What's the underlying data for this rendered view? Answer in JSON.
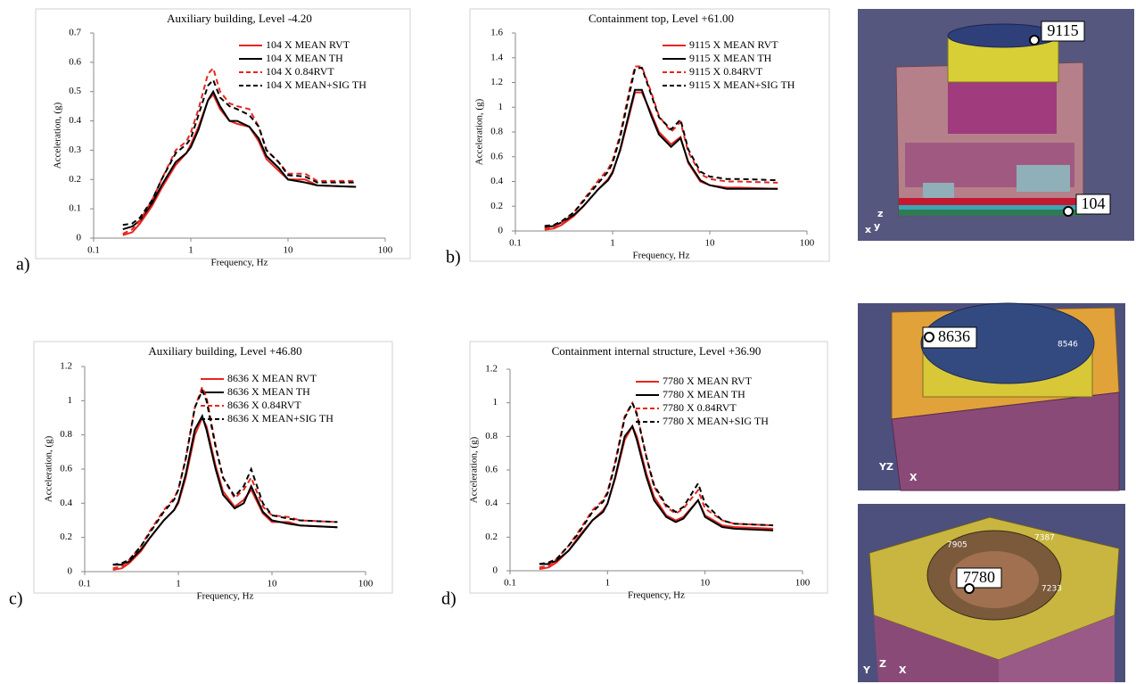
{
  "chart_data": [
    {
      "type": "line",
      "panel_label": "a)",
      "title": "Auxiliary building, Level -4.20",
      "xlabel": "Frequency, Hz",
      "ylabel": "Acceleration, (g)",
      "xscale": "log",
      "xlim": [
        0.1,
        100
      ],
      "xticks": [
        0.1,
        1,
        10,
        100
      ],
      "ylim": [
        0,
        0.7
      ],
      "yticks": [
        0,
        0.1,
        0.2,
        0.3,
        0.4,
        0.5,
        0.6,
        0.7
      ],
      "legend": "upper right",
      "x": [
        0.2,
        0.25,
        0.3,
        0.4,
        0.5,
        0.7,
        0.9,
        1,
        1.2,
        1.5,
        1.7,
        2,
        2.5,
        3,
        4,
        5,
        6,
        8,
        10,
        15,
        20,
        50
      ],
      "series": [
        {
          "name": "104 X MEAN RVT",
          "color": "#e8251f",
          "dash": false,
          "values": [
            0.01,
            0.02,
            0.05,
            0.11,
            0.17,
            0.25,
            0.29,
            0.32,
            0.38,
            0.47,
            0.49,
            0.44,
            0.4,
            0.39,
            0.38,
            0.33,
            0.27,
            0.23,
            0.2,
            0.2,
            0.18,
            0.175
          ]
        },
        {
          "name": "104 X MEAN TH",
          "color": "#000000",
          "dash": false,
          "values": [
            0.03,
            0.04,
            0.06,
            0.12,
            0.18,
            0.26,
            0.29,
            0.31,
            0.37,
            0.47,
            0.5,
            0.45,
            0.4,
            0.4,
            0.38,
            0.34,
            0.28,
            0.24,
            0.2,
            0.19,
            0.18,
            0.175
          ]
        },
        {
          "name": "104 X 0.84RVT",
          "color": "#e8251f",
          "dash": true,
          "values": [
            0.015,
            0.03,
            0.06,
            0.13,
            0.2,
            0.3,
            0.33,
            0.36,
            0.44,
            0.56,
            0.58,
            0.5,
            0.46,
            0.45,
            0.44,
            0.38,
            0.3,
            0.26,
            0.22,
            0.22,
            0.195,
            0.195
          ]
        },
        {
          "name": "104 X MEAN+SIG TH",
          "color": "#000000",
          "dash": true,
          "values": [
            0.045,
            0.05,
            0.07,
            0.13,
            0.2,
            0.29,
            0.32,
            0.34,
            0.42,
            0.52,
            0.54,
            0.48,
            0.45,
            0.44,
            0.42,
            0.38,
            0.3,
            0.26,
            0.215,
            0.21,
            0.19,
            0.19
          ]
        }
      ]
    },
    {
      "type": "line",
      "panel_label": "b)",
      "title": "Containment top, Level +61.00",
      "xlabel": "Frequency, Hz",
      "ylabel": "Acceleration,  (g)",
      "xscale": "log",
      "xlim": [
        0.1,
        100
      ],
      "xticks": [
        0.1,
        1,
        10,
        100
      ],
      "ylim": [
        0,
        1.6
      ],
      "yticks": [
        0,
        0.2,
        0.4,
        0.6,
        0.8,
        1,
        1.2,
        1.4,
        1.6
      ],
      "legend": "upper right",
      "x": [
        0.2,
        0.25,
        0.3,
        0.4,
        0.5,
        0.7,
        0.9,
        1,
        1.2,
        1.5,
        1.7,
        2,
        2.5,
        3,
        4,
        5,
        6,
        8,
        10,
        15,
        20,
        50
      ],
      "series": [
        {
          "name": "9115 X MEAN RVT",
          "color": "#e8251f",
          "dash": false,
          "values": [
            0.01,
            0.02,
            0.05,
            0.12,
            0.2,
            0.33,
            0.42,
            0.48,
            0.65,
            0.95,
            1.12,
            1.12,
            0.95,
            0.8,
            0.7,
            0.76,
            0.55,
            0.4,
            0.37,
            0.35,
            0.35,
            0.34
          ]
        },
        {
          "name": "9115 X MEAN TH",
          "color": "#000000",
          "dash": false,
          "values": [
            0.03,
            0.04,
            0.07,
            0.13,
            0.2,
            0.33,
            0.41,
            0.47,
            0.66,
            0.97,
            1.14,
            1.14,
            0.93,
            0.78,
            0.68,
            0.75,
            0.56,
            0.41,
            0.37,
            0.34,
            0.34,
            0.34
          ]
        },
        {
          "name": "9115 X 0.84RVT",
          "color": "#e8251f",
          "dash": true,
          "values": [
            0.02,
            0.03,
            0.07,
            0.15,
            0.25,
            0.4,
            0.5,
            0.57,
            0.78,
            1.15,
            1.33,
            1.33,
            1.12,
            0.93,
            0.8,
            0.88,
            0.64,
            0.46,
            0.42,
            0.4,
            0.4,
            0.39
          ]
        },
        {
          "name": "9115 X MEAN+SIG TH",
          "color": "#000000",
          "dash": true,
          "values": [
            0.04,
            0.05,
            0.08,
            0.15,
            0.24,
            0.38,
            0.48,
            0.55,
            0.76,
            1.12,
            1.31,
            1.32,
            1.1,
            0.92,
            0.82,
            0.9,
            0.66,
            0.48,
            0.44,
            0.42,
            0.42,
            0.41
          ]
        }
      ]
    },
    {
      "type": "line",
      "panel_label": "c)",
      "title": "Auxiliary building, Level +46.80",
      "xlabel": "Frequency, Hz",
      "ylabel": "Acceleration,  (g)",
      "xscale": "log",
      "xlim": [
        0.1,
        100
      ],
      "xticks": [
        0.1,
        1,
        10,
        100
      ],
      "ylim": [
        0,
        1.2
      ],
      "yticks": [
        0,
        0.2,
        0.4,
        0.6,
        0.8,
        1,
        1.2
      ],
      "legend": "upper right",
      "x": [
        0.2,
        0.25,
        0.3,
        0.4,
        0.5,
        0.7,
        0.9,
        1,
        1.2,
        1.5,
        1.8,
        2,
        2.5,
        3,
        4,
        5,
        6,
        8,
        10,
        15,
        20,
        50
      ],
      "series": [
        {
          "name": "8636 X MEAN RVT",
          "color": "#e8251f",
          "dash": false,
          "values": [
            0.01,
            0.02,
            0.05,
            0.12,
            0.2,
            0.3,
            0.36,
            0.4,
            0.55,
            0.8,
            0.9,
            0.85,
            0.62,
            0.47,
            0.38,
            0.42,
            0.48,
            0.34,
            0.29,
            0.29,
            0.27,
            0.26
          ]
        },
        {
          "name": "8636 X MEAN TH",
          "color": "#000000",
          "dash": false,
          "values": [
            0.04,
            0.04,
            0.06,
            0.13,
            0.2,
            0.3,
            0.36,
            0.41,
            0.57,
            0.83,
            0.91,
            0.83,
            0.6,
            0.45,
            0.37,
            0.4,
            0.5,
            0.35,
            0.3,
            0.28,
            0.27,
            0.26
          ]
        },
        {
          "name": "8636 X 0.84RVT",
          "color": "#e8251f",
          "dash": true,
          "values": [
            0.02,
            0.03,
            0.07,
            0.15,
            0.24,
            0.36,
            0.43,
            0.48,
            0.66,
            0.96,
            1.08,
            1.02,
            0.74,
            0.55,
            0.43,
            0.48,
            0.55,
            0.38,
            0.33,
            0.32,
            0.3,
            0.29
          ]
        },
        {
          "name": "8636 X MEAN+SIG TH",
          "color": "#000000",
          "dash": true,
          "values": [
            0.04,
            0.05,
            0.07,
            0.15,
            0.23,
            0.35,
            0.42,
            0.48,
            0.66,
            0.96,
            1.06,
            1.0,
            0.73,
            0.55,
            0.44,
            0.5,
            0.6,
            0.4,
            0.33,
            0.31,
            0.3,
            0.29
          ]
        }
      ]
    },
    {
      "type": "line",
      "panel_label": "d)",
      "title": "Containment internal structure, Level +36.90",
      "xlabel": "Frequency, Hz",
      "ylabel": "Acceleration,  (g)",
      "xscale": "log",
      "xlim": [
        0.1,
        100
      ],
      "xticks": [
        0.1,
        1,
        10,
        100
      ],
      "ylim": [
        0,
        1.2
      ],
      "yticks": [
        0,
        0.2,
        0.4,
        0.6,
        0.8,
        1,
        1.2
      ],
      "legend": "upper right",
      "x": [
        0.2,
        0.25,
        0.3,
        0.4,
        0.5,
        0.7,
        0.9,
        1,
        1.2,
        1.5,
        1.8,
        2,
        2.5,
        3,
        4,
        5,
        6,
        8.5,
        10,
        15,
        20,
        50
      ],
      "series": [
        {
          "name": "7780 X MEAN RVT",
          "color": "#e8251f",
          "dash": false,
          "values": [
            0.01,
            0.02,
            0.05,
            0.12,
            0.2,
            0.3,
            0.36,
            0.4,
            0.55,
            0.78,
            0.86,
            0.8,
            0.58,
            0.44,
            0.33,
            0.3,
            0.32,
            0.42,
            0.33,
            0.27,
            0.26,
            0.25
          ]
        },
        {
          "name": "7780 X MEAN TH",
          "color": "#000000",
          "dash": false,
          "values": [
            0.04,
            0.04,
            0.06,
            0.12,
            0.19,
            0.3,
            0.35,
            0.4,
            0.56,
            0.8,
            0.86,
            0.78,
            0.56,
            0.42,
            0.32,
            0.29,
            0.31,
            0.42,
            0.32,
            0.26,
            0.25,
            0.24
          ]
        },
        {
          "name": "7780 X 0.84RVT",
          "color": "#e8251f",
          "dash": true,
          "values": [
            0.02,
            0.03,
            0.07,
            0.15,
            0.23,
            0.36,
            0.42,
            0.47,
            0.65,
            0.92,
            1.0,
            0.94,
            0.68,
            0.5,
            0.38,
            0.34,
            0.37,
            0.48,
            0.37,
            0.3,
            0.28,
            0.27
          ]
        },
        {
          "name": "7780 X MEAN+SIG TH",
          "color": "#000000",
          "dash": true,
          "values": [
            0.04,
            0.05,
            0.07,
            0.15,
            0.22,
            0.35,
            0.41,
            0.46,
            0.64,
            0.91,
            1.0,
            0.93,
            0.68,
            0.51,
            0.39,
            0.35,
            0.38,
            0.52,
            0.4,
            0.3,
            0.28,
            0.27
          ]
        }
      ]
    }
  ],
  "models": [
    {
      "labels": [
        "9115",
        "104"
      ],
      "triad": [
        "x",
        "y",
        "z"
      ]
    },
    {
      "labels": [
        "8636",
        "8546"
      ],
      "triad": [
        "YZ",
        "X"
      ]
    },
    {
      "labels": [
        "7905",
        "7387",
        "7780",
        "7233"
      ],
      "triad": [
        "Y",
        "Z",
        "X"
      ]
    }
  ]
}
